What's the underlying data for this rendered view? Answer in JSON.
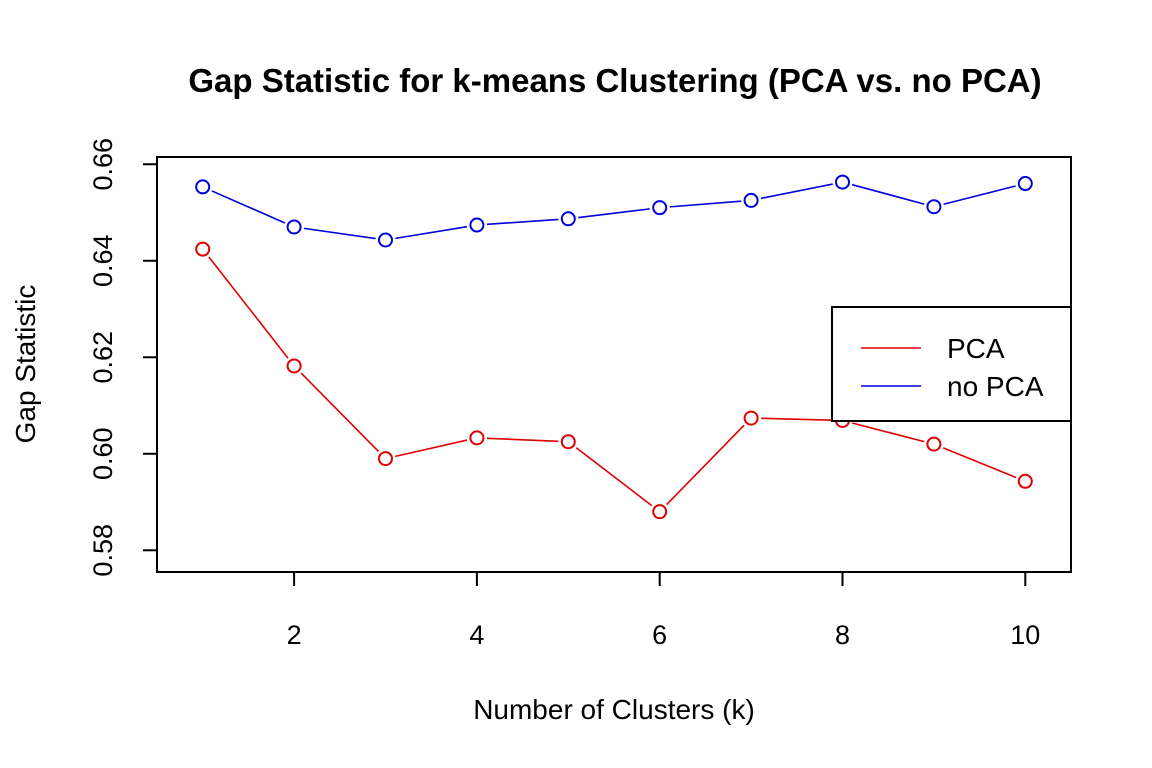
{
  "chart_data": {
    "type": "line",
    "title": "Gap Statistic for k-means Clustering (PCA vs. no PCA)",
    "xlabel": "Number of Clusters (k)",
    "ylabel": "Gap Statistic",
    "x": [
      1,
      2,
      3,
      4,
      5,
      6,
      7,
      8,
      9,
      10
    ],
    "xlim": [
      0.5,
      10.5
    ],
    "ylim": [
      0.5755,
      0.6615
    ],
    "x_ticks": [
      "2",
      "4",
      "6",
      "8",
      "10"
    ],
    "y_ticks": [
      "0.58",
      "0.60",
      "0.62",
      "0.64",
      "0.66"
    ],
    "legend_position": "right",
    "grid": false,
    "series": [
      {
        "name": "PCA",
        "color": "#e00000",
        "values": [
          0.6424,
          0.6182,
          0.599,
          0.6033,
          0.6025,
          0.588,
          0.6074,
          0.6069,
          0.602,
          0.5943
        ]
      },
      {
        "name": "no PCA",
        "color": "#0000e0",
        "values": [
          0.6553,
          0.647,
          0.6443,
          0.6474,
          0.6487,
          0.651,
          0.6525,
          0.6563,
          0.6512,
          0.656
        ]
      }
    ]
  }
}
